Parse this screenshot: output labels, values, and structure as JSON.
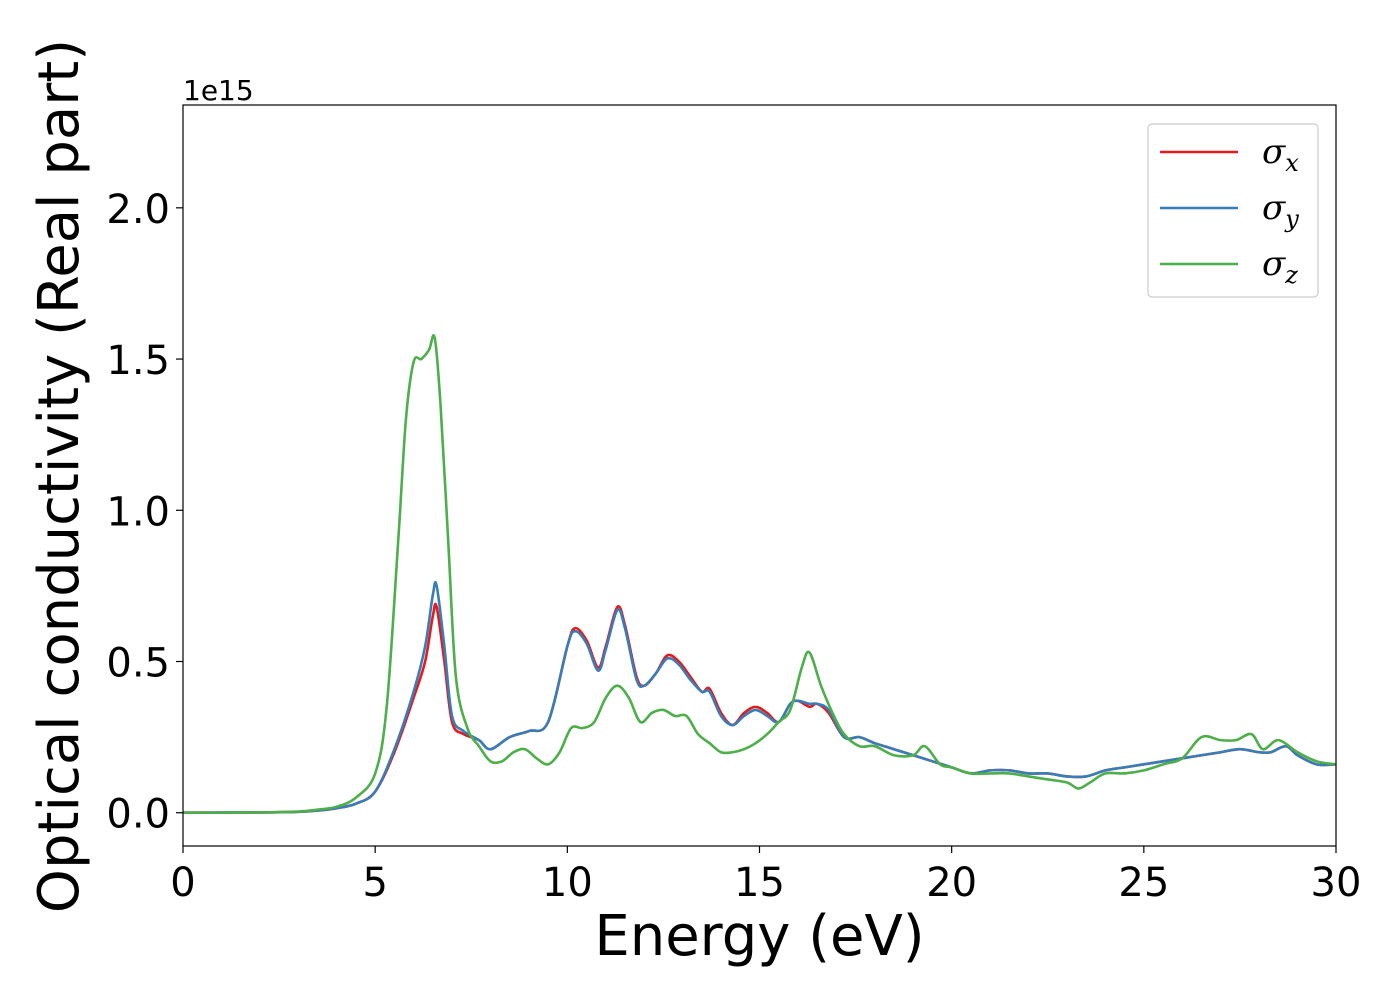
{
  "chart_data": {
    "type": "line",
    "xlabel": "Energy (eV)",
    "ylabel": "Optical conductivity (Real part)",
    "y_offset_label": "1e15",
    "xlim": [
      0,
      30
    ],
    "ylim": [
      -0.11,
      2.34
    ],
    "x_ticks": [
      0,
      5,
      10,
      15,
      20,
      25,
      30
    ],
    "y_ticks": [
      0.0,
      0.5,
      1.0,
      1.5,
      2.0
    ],
    "x_tick_labels": [
      "0",
      "5",
      "10",
      "15",
      "20",
      "25",
      "30"
    ],
    "y_tick_labels": [
      "0.0",
      "0.5",
      "1.0",
      "1.5",
      "2.0"
    ],
    "grid": false,
    "legend_position": "top-right",
    "series": [
      {
        "name": "σ",
        "subscript": "x",
        "color": "#e41a1c",
        "x": [
          0,
          2,
          3,
          3.5,
          4,
          4.5,
          5,
          5.5,
          6,
          6.3,
          6.5,
          6.6,
          6.8,
          7,
          7.3,
          7.7,
          8,
          8.5,
          9,
          9.5,
          10,
          10.2,
          10.5,
          10.8,
          11,
          11.3,
          11.5,
          11.8,
          12,
          12.3,
          12.6,
          12.9,
          13.2,
          13.5,
          13.7,
          14,
          14.3,
          14.6,
          14.9,
          15.2,
          15.5,
          15.8,
          16,
          16.3,
          16.5,
          16.8,
          17.2,
          17.6,
          18,
          18.5,
          19,
          19.5,
          20,
          20.5,
          21,
          21.5,
          22,
          22.5,
          23,
          23.5,
          24,
          24.5,
          25,
          25.5,
          26,
          26.5,
          27,
          27.5,
          28,
          28.3,
          28.7,
          29,
          29.5,
          30
        ],
        "values": [
          0,
          0.001,
          0.003,
          0.007,
          0.015,
          0.03,
          0.07,
          0.2,
          0.38,
          0.5,
          0.65,
          0.68,
          0.5,
          0.3,
          0.26,
          0.24,
          0.21,
          0.25,
          0.27,
          0.3,
          0.55,
          0.61,
          0.57,
          0.48,
          0.55,
          0.68,
          0.62,
          0.45,
          0.42,
          0.46,
          0.52,
          0.5,
          0.45,
          0.4,
          0.41,
          0.33,
          0.29,
          0.33,
          0.35,
          0.33,
          0.3,
          0.36,
          0.37,
          0.35,
          0.36,
          0.33,
          0.25,
          0.25,
          0.23,
          0.21,
          0.19,
          0.17,
          0.15,
          0.13,
          0.14,
          0.14,
          0.13,
          0.13,
          0.12,
          0.12,
          0.14,
          0.15,
          0.16,
          0.17,
          0.18,
          0.19,
          0.2,
          0.21,
          0.2,
          0.2,
          0.22,
          0.19,
          0.16,
          0.16
        ]
      },
      {
        "name": "σ",
        "subscript": "y",
        "color": "#377eb8",
        "x": [
          0,
          2,
          3,
          3.5,
          4,
          4.5,
          5,
          5.5,
          6,
          6.3,
          6.5,
          6.6,
          6.8,
          7,
          7.3,
          7.7,
          8,
          8.5,
          9,
          9.5,
          10,
          10.2,
          10.5,
          10.8,
          11,
          11.3,
          11.5,
          11.8,
          12,
          12.3,
          12.6,
          12.9,
          13.2,
          13.5,
          13.7,
          14,
          14.3,
          14.6,
          14.9,
          15.2,
          15.5,
          15.8,
          16,
          16.3,
          16.5,
          16.8,
          17.2,
          17.6,
          18,
          18.5,
          19,
          19.5,
          20,
          20.5,
          21,
          21.5,
          22,
          22.5,
          23,
          23.5,
          24,
          24.5,
          25,
          25.5,
          26,
          26.5,
          27,
          27.5,
          28,
          28.3,
          28.7,
          29,
          29.5,
          30
        ],
        "values": [
          0,
          0.001,
          0.003,
          0.007,
          0.015,
          0.03,
          0.07,
          0.21,
          0.4,
          0.55,
          0.72,
          0.75,
          0.55,
          0.32,
          0.27,
          0.24,
          0.21,
          0.25,
          0.27,
          0.3,
          0.55,
          0.6,
          0.56,
          0.47,
          0.54,
          0.67,
          0.61,
          0.44,
          0.42,
          0.46,
          0.51,
          0.49,
          0.44,
          0.4,
          0.4,
          0.32,
          0.29,
          0.32,
          0.34,
          0.32,
          0.3,
          0.36,
          0.37,
          0.36,
          0.36,
          0.34,
          0.25,
          0.25,
          0.23,
          0.21,
          0.19,
          0.17,
          0.15,
          0.13,
          0.14,
          0.14,
          0.13,
          0.13,
          0.12,
          0.12,
          0.14,
          0.15,
          0.16,
          0.17,
          0.18,
          0.19,
          0.2,
          0.21,
          0.2,
          0.2,
          0.22,
          0.19,
          0.16,
          0.16
        ]
      },
      {
        "name": "σ",
        "subscript": "z",
        "color": "#4daf4a",
        "x": [
          0,
          2,
          3,
          3.5,
          4,
          4.5,
          5,
          5.3,
          5.6,
          5.8,
          6,
          6.2,
          6.4,
          6.55,
          6.7,
          6.9,
          7.1,
          7.4,
          7.7,
          8,
          8.3,
          8.6,
          8.9,
          9.2,
          9.5,
          9.8,
          10.1,
          10.4,
          10.7,
          11,
          11.3,
          11.6,
          11.9,
          12.2,
          12.5,
          12.8,
          13.1,
          13.4,
          13.7,
          14,
          14.3,
          14.6,
          14.9,
          15.2,
          15.5,
          15.8,
          16.1,
          16.3,
          16.6,
          16.9,
          17.2,
          17.6,
          18,
          18.5,
          19,
          19.3,
          19.7,
          20,
          20.5,
          21,
          21.5,
          22,
          22.5,
          23,
          23.3,
          23.6,
          24,
          24.5,
          25,
          25.5,
          26,
          26.5,
          27,
          27.4,
          27.8,
          28.1,
          28.5,
          29,
          29.5,
          30
        ],
        "values": [
          0,
          0.001,
          0.004,
          0.01,
          0.02,
          0.05,
          0.13,
          0.35,
          0.9,
          1.3,
          1.49,
          1.5,
          1.53,
          1.57,
          1.35,
          0.9,
          0.45,
          0.28,
          0.22,
          0.17,
          0.17,
          0.2,
          0.21,
          0.18,
          0.16,
          0.2,
          0.28,
          0.28,
          0.3,
          0.38,
          0.42,
          0.38,
          0.3,
          0.33,
          0.34,
          0.32,
          0.32,
          0.26,
          0.23,
          0.2,
          0.2,
          0.21,
          0.23,
          0.26,
          0.3,
          0.34,
          0.48,
          0.53,
          0.42,
          0.33,
          0.26,
          0.22,
          0.22,
          0.19,
          0.19,
          0.22,
          0.16,
          0.15,
          0.13,
          0.13,
          0.13,
          0.12,
          0.11,
          0.1,
          0.08,
          0.1,
          0.13,
          0.13,
          0.14,
          0.16,
          0.18,
          0.25,
          0.24,
          0.24,
          0.26,
          0.21,
          0.24,
          0.2,
          0.17,
          0.16
        ]
      }
    ]
  }
}
